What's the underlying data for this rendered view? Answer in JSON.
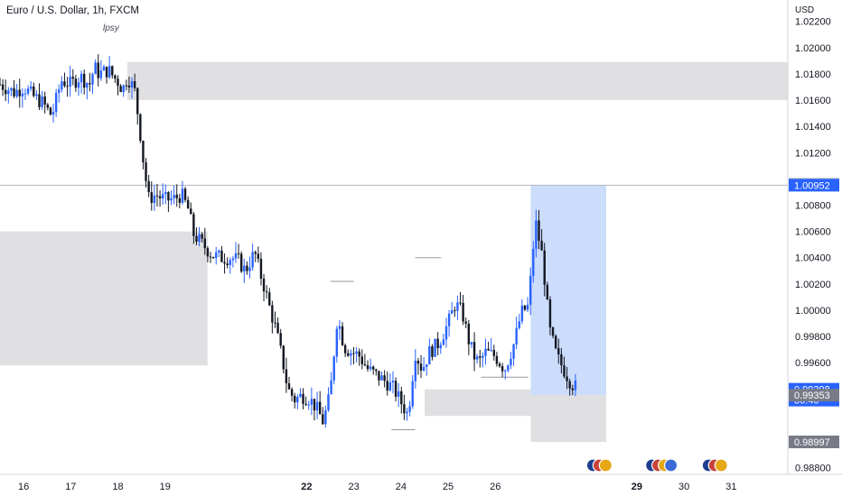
{
  "header": {
    "title": "Euro / U.S. Dollar, 1h, FXCM",
    "indicator": "lpsy",
    "currency": "USD"
  },
  "chart_data": {
    "type": "candlestick",
    "title": "Euro / U.S. Dollar, 1h, FXCM",
    "annotation": "lpsy",
    "y_axis": {
      "currency": "USD",
      "range": [
        0.9875,
        1.0228
      ],
      "ticks": [
        1.022,
        1.02,
        1.018,
        1.016,
        1.014,
        1.012,
        1.008,
        1.006,
        1.004,
        1.002,
        1.0,
        0.998,
        0.996,
        0.988
      ],
      "tick_labels": [
        "1.02200",
        "1.02000",
        "1.01800",
        "1.01600",
        "1.01400",
        "1.01200",
        "1.00800",
        "1.00600",
        "1.00400",
        "1.00200",
        "1.00000",
        "0.99800",
        "0.99600",
        "0.98800"
      ]
    },
    "x_axis": {
      "range": [
        15.5,
        32.2
      ],
      "ticks": [
        16,
        17,
        18,
        19,
        22,
        23,
        24,
        25,
        26,
        29,
        30,
        31
      ],
      "tick_labels": [
        "16",
        "17",
        "18",
        "19",
        "22",
        "23",
        "24",
        "25",
        "26",
        "29",
        "30",
        "31"
      ],
      "bold_labels": [
        "22",
        "29"
      ]
    },
    "candle_path": [
      [
        15.5,
        1.0172
      ],
      [
        15.8,
        1.0166
      ],
      [
        16.0,
        1.017
      ],
      [
        16.2,
        1.0163
      ],
      [
        16.4,
        1.0158
      ],
      [
        16.6,
        1.0148
      ],
      [
        16.8,
        1.0175
      ],
      [
        17.0,
        1.0172
      ],
      [
        17.2,
        1.0178
      ],
      [
        17.4,
        1.0172
      ],
      [
        17.5,
        1.0185
      ],
      [
        17.6,
        1.018
      ],
      [
        17.8,
        1.0183
      ],
      [
        17.9,
        1.0178
      ],
      [
        18.0,
        1.0174
      ],
      [
        18.1,
        1.0168
      ],
      [
        18.2,
        1.0178
      ],
      [
        18.35,
        1.0168
      ],
      [
        18.45,
        1.0142
      ],
      [
        18.55,
        1.011
      ],
      [
        18.65,
        1.0085
      ],
      [
        18.8,
        1.0088
      ],
      [
        19.0,
        1.0084
      ],
      [
        19.2,
        1.0085
      ],
      [
        19.35,
        1.0088
      ],
      [
        19.5,
        1.0076
      ],
      [
        19.6,
        1.0058
      ],
      [
        19.8,
        1.005
      ],
      [
        20.0,
        1.0042
      ],
      [
        20.2,
        1.004
      ],
      [
        20.4,
        1.004
      ],
      [
        20.55,
        1.0038
      ],
      [
        20.7,
        1.003
      ],
      [
        20.9,
        1.0044
      ],
      [
        21.0,
        1.003
      ],
      [
        21.1,
        1.0018
      ],
      [
        21.2,
        1.0004
      ],
      [
        21.35,
        0.9985
      ],
      [
        21.5,
        0.996
      ],
      [
        21.6,
        0.994
      ],
      [
        21.75,
        0.9932
      ],
      [
        21.9,
        0.9935
      ],
      [
        22.05,
        0.9933
      ],
      [
        22.2,
        0.9926
      ],
      [
        22.35,
        0.9915
      ],
      [
        22.5,
        0.9936
      ],
      [
        22.65,
        0.9995
      ],
      [
        22.8,
        0.9972
      ],
      [
        22.95,
        0.9968
      ],
      [
        23.1,
        0.9966
      ],
      [
        23.3,
        0.9955
      ],
      [
        23.5,
        0.995
      ],
      [
        23.7,
        0.9945
      ],
      [
        23.85,
        0.994
      ],
      [
        24.0,
        0.993
      ],
      [
        24.15,
        0.992
      ],
      [
        24.3,
        0.9968
      ],
      [
        24.45,
        0.9955
      ],
      [
        24.6,
        0.9968
      ],
      [
        24.8,
        0.9975
      ],
      [
        25.0,
        0.999
      ],
      [
        25.15,
        1.0005
      ],
      [
        25.3,
        0.9998
      ],
      [
        25.45,
        0.9975
      ],
      [
        25.55,
        0.9965
      ],
      [
        25.65,
        0.996
      ],
      [
        25.8,
        0.9968
      ],
      [
        26.0,
        0.9965
      ],
      [
        26.2,
        0.9955
      ],
      [
        26.4,
        0.9975
      ],
      [
        26.55,
        0.9998
      ],
      [
        26.7,
        1.0003
      ],
      [
        26.85,
        1.0068
      ],
      [
        27.0,
        1.004
      ],
      [
        27.15,
        0.9985
      ],
      [
        27.3,
        0.9965
      ],
      [
        27.45,
        0.9955
      ],
      [
        27.6,
        0.9945
      ],
      [
        27.75,
        0.99398
      ]
    ],
    "last_price": 0.99398,
    "countdown": "36:40",
    "horizontal_line": 1.00952,
    "price_labels": [
      {
        "price": 1.00959,
        "text": "1.00959",
        "color": "#b2b5be",
        "text_color": "#131722"
      },
      {
        "price": 1.00952,
        "text": "1.00952",
        "color": "#2962ff",
        "text_color": "#ffffff"
      },
      {
        "price": 0.99398,
        "text": "0.99398",
        "color": "#2962ff",
        "text_color": "#ffffff"
      },
      {
        "price": 0.99353,
        "text": "0.99353",
        "color": "#787b86",
        "text_color": "#ffffff"
      },
      {
        "price": 0.98997,
        "text": "0.98997",
        "color": "#787b86",
        "text_color": "#ffffff"
      }
    ],
    "zones": [
      {
        "x1": 18.2,
        "x2": 32.2,
        "y1": 1.016,
        "y2": 1.0189,
        "color": "#e0e0e2"
      },
      {
        "x1": 15.5,
        "x2": 19.9,
        "y1": 0.9958,
        "y2": 1.006,
        "color": "#e0e0e2"
      },
      {
        "x1": 24.5,
        "x2": 27.8,
        "y1": 0.99195,
        "y2": 0.99398,
        "color": "#e0e0e2"
      },
      {
        "x1": 26.75,
        "x2": 28.35,
        "y1": 0.98997,
        "y2": 0.99353,
        "color": "#e0e0e2"
      },
      {
        "x1": 26.75,
        "x2": 28.35,
        "y1": 0.99353,
        "y2": 1.00952,
        "color": "#ccdcfb"
      }
    ],
    "level_lines": [
      {
        "x1": 22.5,
        "x2": 23.0,
        "y": 1.0022
      },
      {
        "x1": 24.3,
        "x2": 24.85,
        "y": 1.004
      },
      {
        "x1": 25.7,
        "x2": 26.7,
        "y": 0.9949
      },
      {
        "x1": 23.8,
        "x2": 24.3,
        "y": 0.9909
      }
    ],
    "event_icons": [
      {
        "x": 28.3,
        "count": 3
      },
      {
        "x": 29.55,
        "count": 4
      },
      {
        "x": 30.75,
        "count": 3
      }
    ],
    "colors": {
      "up": "#2962ff",
      "down": "#131722",
      "axis_text": "#131722",
      "border": "#d1d4dc"
    }
  }
}
